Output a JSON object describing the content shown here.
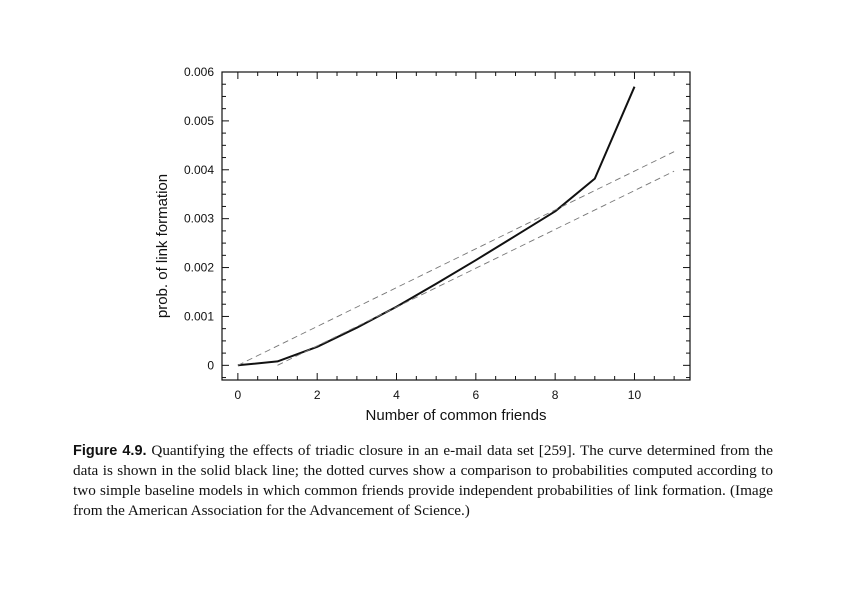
{
  "chart_data": {
    "type": "line",
    "xlabel": "Number of common friends",
    "ylabel": "prob. of link formation",
    "xlim": [
      -0.4,
      11.4
    ],
    "ylim": [
      -0.0003,
      0.006
    ],
    "x_ticks": [
      0,
      2,
      4,
      6,
      8,
      10
    ],
    "x_tick_labels": [
      "0",
      "2",
      "4",
      "6",
      "8",
      "10"
    ],
    "y_ticks": [
      0,
      0.001,
      0.002,
      0.003,
      0.004,
      0.005,
      0.006
    ],
    "y_tick_labels": [
      "0",
      "0.001",
      "0.002",
      "0.003",
      "0.004",
      "0.005",
      "0.006"
    ],
    "grid": false,
    "series": [
      {
        "style": "solid",
        "color": "#111111",
        "x": [
          0,
          1,
          2,
          3,
          4,
          5,
          6,
          7,
          8,
          9,
          10
        ],
        "y": [
          0,
          8e-05,
          0.00038,
          0.00077,
          0.0012,
          0.00167,
          0.00215,
          0.00265,
          0.00315,
          0.00382,
          0.0057
        ]
      },
      {
        "style": "dashed",
        "color": "#777777",
        "x": [
          0,
          11
        ],
        "y": [
          0,
          0.00437
        ]
      },
      {
        "style": "dashed",
        "color": "#777777",
        "x": [
          1,
          11
        ],
        "y": [
          0,
          0.00397
        ]
      }
    ]
  },
  "caption": {
    "label": "Figure 4.9.",
    "text": " Quantifying the effects of triadic closure in an e-mail data set [259]. The curve determined from the data is shown in the solid black line; the dotted curves show a comparison to probabilities computed according to two simple baseline models in which common friends provide independent probabilities of link formation. (Image from the American Association for the Advancement of Science.)"
  }
}
